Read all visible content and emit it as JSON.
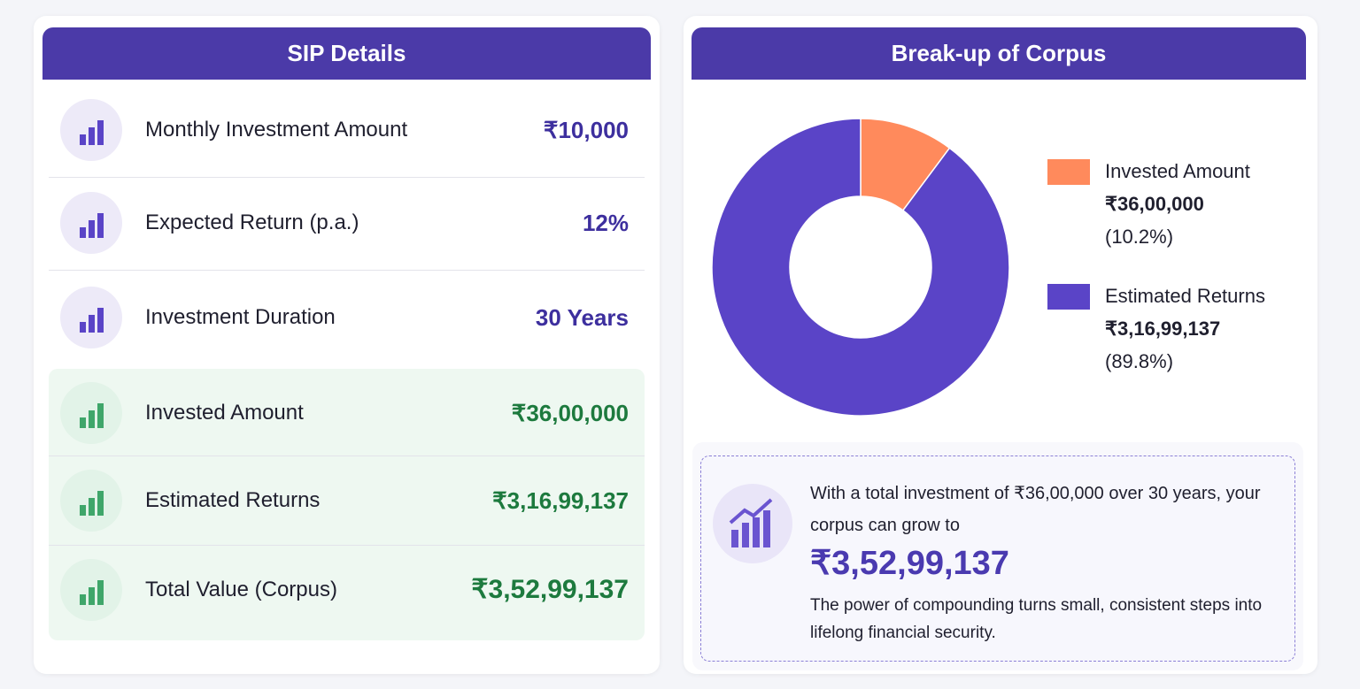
{
  "sip_details": {
    "title": "SIP Details",
    "inputs": [
      {
        "label": "Monthly Investment Amount",
        "value": "₹10,000"
      },
      {
        "label": "Expected Return (p.a.)",
        "value": "12%"
      },
      {
        "label": "Investment Duration",
        "value": "30 Years"
      }
    ],
    "results": [
      {
        "label": "Invested Amount",
        "value": "₹36,00,000"
      },
      {
        "label": "Estimated Returns",
        "value": "₹3,16,99,137"
      },
      {
        "label": "Total Value (Corpus)",
        "value": "₹3,52,99,137"
      }
    ]
  },
  "chart_data": {
    "type": "pie",
    "title": "Break-up of Corpus",
    "categories": [
      "Invested Amount",
      "Estimated Returns"
    ],
    "values": [
      10.2,
      89.8
    ],
    "value_labels": [
      "(10.2%)",
      "(89.8%)"
    ],
    "amounts": [
      "₹36,00,000",
      "₹3,16,99,137"
    ],
    "colors": [
      "#ff8a5c",
      "#5a44c7"
    ],
    "donut": true
  },
  "summary": {
    "intro": "With a total investment of ₹36,00,000 over 30 years, your corpus can grow to",
    "corpus": "₹3,52,99,137",
    "note": "The power of compounding turns small, consistent steps into lifelong financial security."
  }
}
